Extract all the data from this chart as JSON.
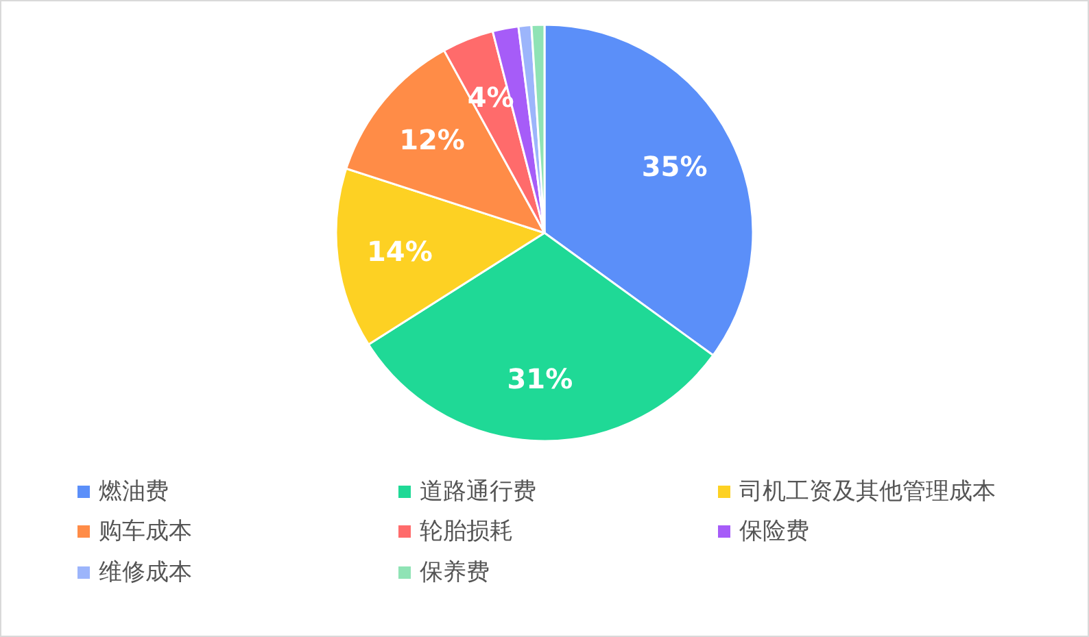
{
  "chart_data": {
    "type": "pie",
    "categories": [
      "燃油费",
      "道路通行费",
      "司机工资及其他管理成本",
      "购车成本",
      "轮胎损耗",
      "保险费",
      "维修成本",
      "保养费"
    ],
    "values": [
      35,
      31,
      14,
      12,
      4,
      2,
      1,
      1
    ],
    "colors": [
      "#5b8ff9",
      "#1fd996",
      "#fdd123",
      "#ff8c47",
      "#ff6b6b",
      "#a65cf8",
      "#9cb5fb",
      "#8fe3b5"
    ],
    "value_labels": [
      "35%",
      "31%",
      "14%",
      "12%",
      "4%",
      null,
      null,
      null
    ],
    "legend": "bottom"
  }
}
